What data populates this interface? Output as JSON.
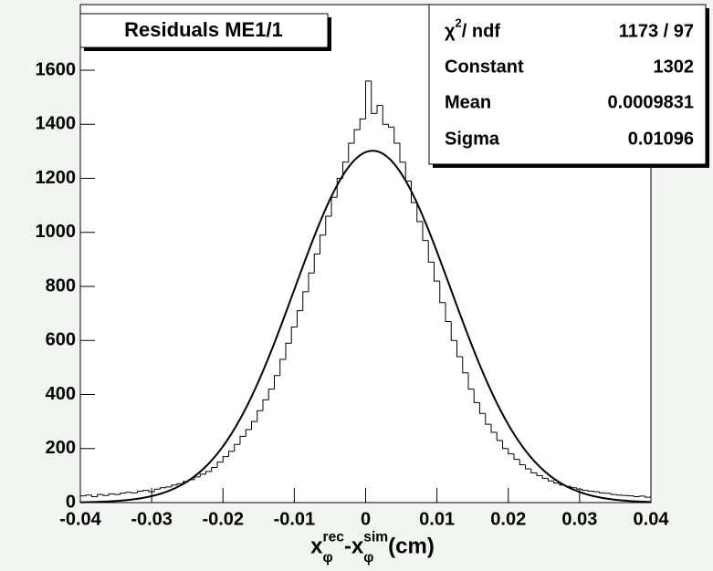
{
  "chart_data": {
    "type": "histogram",
    "title": "Residuals ME1/1",
    "xlabel": [
      {
        "text": "x",
        "sup": "rec",
        "sub": "φ"
      },
      {
        "text": "-x",
        "sup": "sim",
        "sub": "φ"
      },
      {
        "text": " (cm)"
      }
    ],
    "bins": [
      -0.04,
      -0.0392,
      -0.0384,
      -0.0376,
      -0.0368,
      -0.036,
      -0.0352,
      -0.0344,
      -0.0336,
      -0.0328,
      -0.032,
      -0.0312,
      -0.0304,
      -0.0296,
      -0.0288,
      -0.028,
      -0.0272,
      -0.0264,
      -0.0256,
      -0.0248,
      -0.024,
      -0.0232,
      -0.0224,
      -0.0216,
      -0.0208,
      -0.02,
      -0.0192,
      -0.0184,
      -0.0176,
      -0.0168,
      -0.016,
      -0.0152,
      -0.0144,
      -0.0136,
      -0.0128,
      -0.012,
      -0.0112,
      -0.0104,
      -0.0096,
      -0.0088,
      -0.008,
      -0.0072,
      -0.0064,
      -0.0056,
      -0.0048,
      -0.004,
      -0.0032,
      -0.0024,
      -0.0016,
      -0.0008,
      0,
      0.0008,
      0.0016,
      0.0024,
      0.0032,
      0.004,
      0.0048,
      0.0056,
      0.0064,
      0.0072,
      0.008,
      0.0088,
      0.0096,
      0.0104,
      0.0112,
      0.012,
      0.0128,
      0.0136,
      0.0144,
      0.0152,
      0.016,
      0.0168,
      0.0176,
      0.0184,
      0.0192,
      0.02,
      0.0208,
      0.0216,
      0.0224,
      0.0232,
      0.024,
      0.0248,
      0.0256,
      0.0264,
      0.0272,
      0.028,
      0.0288,
      0.0296,
      0.0304,
      0.0312,
      0.032,
      0.0328,
      0.0336,
      0.0344,
      0.0352,
      0.036,
      0.0368,
      0.0376,
      0.0384,
      0.0392,
      0.04
    ],
    "values": [
      25,
      28,
      22,
      30,
      26,
      32,
      30,
      35,
      38,
      36,
      42,
      45,
      40,
      50,
      55,
      58,
      65,
      70,
      78,
      85,
      95,
      105,
      115,
      130,
      150,
      170,
      190,
      215,
      245,
      270,
      300,
      340,
      380,
      420,
      470,
      530,
      590,
      650,
      710,
      780,
      850,
      920,
      990,
      1060,
      1130,
      1200,
      1260,
      1330,
      1380,
      1420,
      1560,
      1440,
      1470,
      1400,
      1390,
      1330,
      1260,
      1190,
      1110,
      1040,
      970,
      890,
      820,
      740,
      670,
      600,
      540,
      480,
      420,
      370,
      330,
      290,
      260,
      230,
      200,
      180,
      160,
      140,
      125,
      110,
      100,
      90,
      80,
      72,
      65,
      60,
      55,
      50,
      45,
      42,
      40,
      36,
      34,
      30,
      28,
      26,
      25,
      22,
      24,
      20
    ],
    "color": "#000000",
    "xlim": [
      -0.04,
      0.04
    ],
    "ylim": [
      0,
      1600
    ],
    "xticks": [
      -0.04,
      -0.03,
      -0.02,
      -0.01,
      0,
      0.01,
      0.02,
      0.03,
      0.04
    ],
    "yticks": [
      0,
      200,
      400,
      600,
      800,
      1000,
      1200,
      1400,
      1600
    ],
    "fit": {
      "type": "gaus",
      "color": "#000000"
    },
    "stats": {
      "chi2_label": [
        {
          "text": "χ",
          "sup": "2"
        },
        {
          "text": " / ndf"
        }
      ],
      "chi2_value": "1173 / 97",
      "constant_label": "Constant",
      "constant": 1302,
      "mean_label": "Mean",
      "mean": 0.0009831,
      "sigma_label": "Sigma",
      "sigma": 0.01096
    }
  }
}
